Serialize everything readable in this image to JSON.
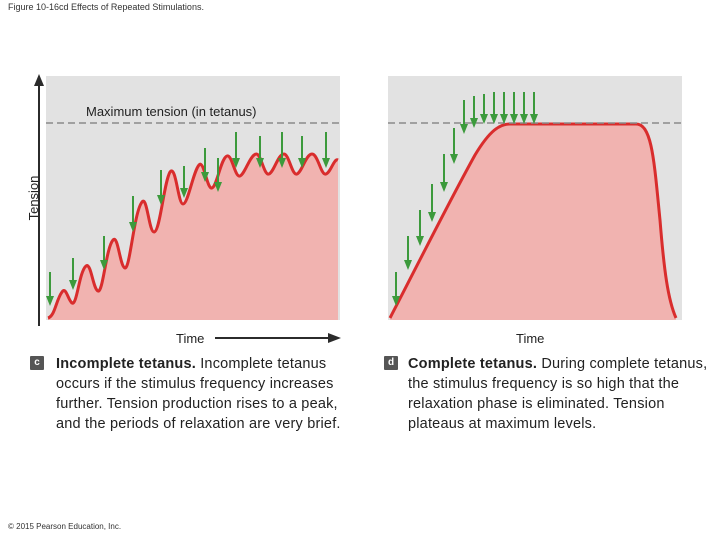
{
  "figure_title": "Figure 10-16cd Effects of Repeated Stimulations.",
  "copyright": "© 2015 Pearson Education, Inc.",
  "colors": {
    "panel_bg": "#e2e2e2",
    "fill": "#f1b3b0",
    "curve": "#d92d2d",
    "arrow": "#3c9a3c",
    "axis": "#2b2b2b",
    "dashed": "#8a8a8a"
  },
  "panel_c": {
    "ylabel": "Tension",
    "xlabel": "Time",
    "max_label": "Maximum tension (in tetanus)",
    "badge": "c",
    "caption_title": "Incomplete tetanus.",
    "caption_body": " Incomplete tetanus occurs if the stimulus frequency increases further. Tension production rises to a peak, and the periods of relaxation are very brief.",
    "stimulus_count": 13
  },
  "panel_d": {
    "xlabel": "Time",
    "badge": "d",
    "caption_title": "Complete tetanus.",
    "caption_body": " During complete tetanus, the stimulus frequency is so high that the relaxation phase is eliminated. Tension plateaus at maximum levels.",
    "stimulus_count": 14
  }
}
